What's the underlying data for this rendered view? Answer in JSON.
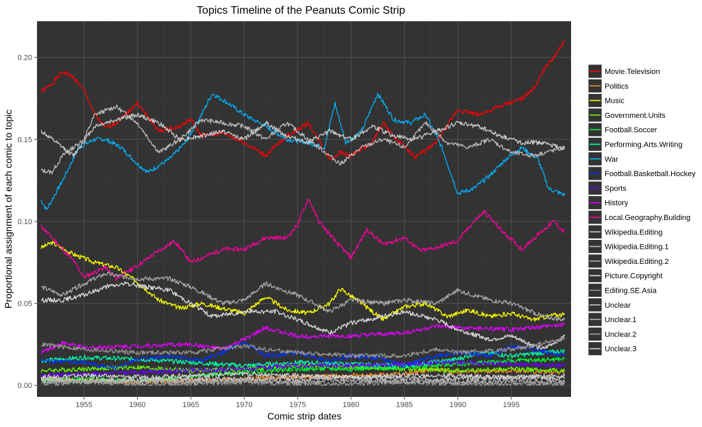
{
  "chart_data": {
    "type": "line",
    "title": "Topics Timeline of the Peanuts Comic Strip",
    "xlabel": "Comic strip dates",
    "ylabel": "Proportional assignment of each comic to topic",
    "xlim": [
      1950.6,
      2000.6
    ],
    "ylim": [
      -0.007,
      0.222
    ],
    "x_ticks": [
      1955,
      1960,
      1965,
      1970,
      1975,
      1980,
      1985,
      1990,
      1995
    ],
    "x_tick_labels": [
      "1955",
      "1960",
      "1965",
      "1970",
      "1975",
      "1980",
      "1985",
      "1990",
      "1995"
    ],
    "y_ticks": [
      0.0,
      0.05,
      0.1,
      0.15,
      0.2
    ],
    "y_tick_labels": [
      "0.00",
      "0.05",
      "0.10",
      "0.15",
      "0.20"
    ],
    "grid": true,
    "legend_position": "right",
    "series": [
      {
        "name": "Movie.Television",
        "color": "#ff0000",
        "x": [
          1951,
          1952,
          1953,
          1954,
          1955,
          1956,
          1957,
          1958,
          1960,
          1962,
          1964,
          1965,
          1966,
          1968,
          1970,
          1972,
          1974,
          1976,
          1978,
          1979,
          1980,
          1982,
          1983,
          1984,
          1986,
          1988,
          1990,
          1992,
          1994,
          1996,
          1997,
          1998,
          1999,
          2000
        ],
        "y": [
          0.179,
          0.184,
          0.191,
          0.188,
          0.18,
          0.165,
          0.157,
          0.16,
          0.172,
          0.155,
          0.158,
          0.162,
          0.152,
          0.154,
          0.148,
          0.14,
          0.152,
          0.16,
          0.138,
          0.142,
          0.14,
          0.148,
          0.16,
          0.152,
          0.139,
          0.148,
          0.168,
          0.165,
          0.17,
          0.175,
          0.18,
          0.192,
          0.2,
          0.21
        ]
      },
      {
        "name": "Politics",
        "color": "#ff8c1a",
        "x": [
          1951,
          1955,
          1960,
          1965,
          1970,
          1975,
          1980,
          1985,
          1988,
          1990,
          1995,
          2000
        ],
        "y": [
          0.004,
          0.003,
          0.002,
          0.003,
          0.004,
          0.005,
          0.006,
          0.007,
          0.01,
          0.008,
          0.009,
          0.008
        ]
      },
      {
        "name": "Music",
        "color": "#ffff00",
        "x": [
          1951,
          1952,
          1954,
          1956,
          1958,
          1960,
          1962,
          1964,
          1966,
          1968,
          1970,
          1972,
          1974,
          1976,
          1978,
          1979,
          1981,
          1983,
          1985,
          1987,
          1989,
          1991,
          1993,
          1995,
          1997,
          1999,
          2000
        ],
        "y": [
          0.084,
          0.087,
          0.08,
          0.075,
          0.072,
          0.063,
          0.052,
          0.047,
          0.05,
          0.047,
          0.044,
          0.054,
          0.046,
          0.044,
          0.05,
          0.059,
          0.05,
          0.04,
          0.048,
          0.05,
          0.042,
          0.046,
          0.042,
          0.044,
          0.04,
          0.043,
          0.043
        ]
      },
      {
        "name": "Government.Units",
        "color": "#66ff00",
        "x": [
          1951,
          1955,
          1960,
          1965,
          1970,
          1975,
          1980,
          1985,
          1990,
          1995,
          2000
        ],
        "y": [
          0.009,
          0.01,
          0.011,
          0.009,
          0.01,
          0.012,
          0.011,
          0.01,
          0.009,
          0.01,
          0.009
        ]
      },
      {
        "name": "Football.Soccer",
        "color": "#00ff33",
        "x": [
          1951,
          1955,
          1960,
          1963,
          1966,
          1970,
          1975,
          1980,
          1985,
          1990,
          1995,
          2000
        ],
        "y": [
          0.003,
          0.004,
          0.003,
          0.004,
          0.006,
          0.008,
          0.01,
          0.01,
          0.011,
          0.013,
          0.015,
          0.016
        ]
      },
      {
        "name": "Performing.Arts.Writing",
        "color": "#00ffb3",
        "x": [
          1951,
          1955,
          1960,
          1965,
          1970,
          1975,
          1980,
          1985,
          1990,
          1992,
          1995,
          2000
        ],
        "y": [
          0.015,
          0.017,
          0.016,
          0.014,
          0.012,
          0.014,
          0.013,
          0.012,
          0.016,
          0.02,
          0.018,
          0.021
        ]
      },
      {
        "name": "War",
        "color": "#00b3ff",
        "x": [
          1951,
          1951.5,
          1953,
          1954.5,
          1956,
          1957,
          1958.5,
          1960,
          1961,
          1963,
          1964.5,
          1966,
          1967,
          1968.5,
          1970,
          1972,
          1974,
          1976,
          1977.5,
          1978.5,
          1979.5,
          1981,
          1982.5,
          1984,
          1985.5,
          1987,
          1988.5,
          1990,
          1991.5,
          1993,
          1994.5,
          1996,
          1997.5,
          1998.5,
          2000
        ],
        "y": [
          0.113,
          0.107,
          0.125,
          0.145,
          0.15,
          0.15,
          0.145,
          0.135,
          0.13,
          0.138,
          0.148,
          0.165,
          0.178,
          0.172,
          0.165,
          0.158,
          0.15,
          0.148,
          0.145,
          0.172,
          0.148,
          0.155,
          0.178,
          0.162,
          0.16,
          0.165,
          0.145,
          0.117,
          0.12,
          0.128,
          0.138,
          0.145,
          0.138,
          0.12,
          0.116
        ]
      },
      {
        "name": "Football.Basketball.Hockey",
        "color": "#0033ff",
        "x": [
          1951,
          1955,
          1958,
          1960,
          1963,
          1966,
          1968,
          1970,
          1972,
          1975,
          1978,
          1980,
          1983,
          1985,
          1988,
          1990,
          1993,
          1995,
          1997,
          2000
        ],
        "y": [
          0.015,
          0.014,
          0.01,
          0.016,
          0.018,
          0.015,
          0.02,
          0.026,
          0.018,
          0.02,
          0.015,
          0.018,
          0.016,
          0.012,
          0.018,
          0.02,
          0.018,
          0.024,
          0.022,
          0.018
        ]
      },
      {
        "name": "Sports",
        "color": "#6600ff",
        "x": [
          1951,
          1955,
          1960,
          1965,
          1970,
          1975,
          1980,
          1985,
          1990,
          1995,
          2000
        ],
        "y": [
          0.006,
          0.007,
          0.008,
          0.009,
          0.01,
          0.012,
          0.012,
          0.013,
          0.014,
          0.013,
          0.012
        ]
      },
      {
        "name": "History",
        "color": "#e600ff",
        "x": [
          1951,
          1953,
          1955,
          1960,
          1965,
          1968,
          1970,
          1972,
          1975,
          1980,
          1985,
          1988,
          1990,
          1995,
          2000
        ],
        "y": [
          0.02,
          0.026,
          0.023,
          0.024,
          0.025,
          0.022,
          0.028,
          0.035,
          0.03,
          0.03,
          0.032,
          0.036,
          0.035,
          0.034,
          0.037
        ]
      },
      {
        "name": "Local.Geography.Building",
        "color": "#ff00a0",
        "x": [
          1951,
          1952,
          1954,
          1955,
          1957,
          1958,
          1960,
          1962,
          1963.5,
          1965,
          1966.5,
          1968,
          1970,
          1972,
          1974,
          1975,
          1976,
          1977,
          1978.5,
          1980,
          1981.5,
          1983,
          1985,
          1986.5,
          1988,
          1990,
          1991.5,
          1992.5,
          1994,
          1996,
          1997.5,
          1999,
          2000
        ],
        "y": [
          0.097,
          0.09,
          0.076,
          0.066,
          0.072,
          0.065,
          0.073,
          0.082,
          0.088,
          0.075,
          0.079,
          0.083,
          0.083,
          0.09,
          0.09,
          0.098,
          0.114,
          0.1,
          0.088,
          0.078,
          0.095,
          0.086,
          0.09,
          0.082,
          0.084,
          0.088,
          0.1,
          0.106,
          0.095,
          0.083,
          0.092,
          0.1,
          0.093
        ]
      },
      {
        "name": "Wikipedia.Editing",
        "color": "#cccccc",
        "x": [
          1951,
          1952,
          1954,
          1956,
          1958,
          1960,
          1962,
          1964,
          1966,
          1968,
          1970,
          1972,
          1974,
          1976,
          1978,
          1980,
          1982,
          1984,
          1986,
          1988,
          1990,
          1992,
          1994,
          1996,
          1998,
          2000
        ],
        "y": [
          0.155,
          0.15,
          0.14,
          0.158,
          0.162,
          0.165,
          0.16,
          0.15,
          0.152,
          0.155,
          0.15,
          0.16,
          0.152,
          0.148,
          0.155,
          0.15,
          0.158,
          0.152,
          0.15,
          0.155,
          0.16,
          0.158,
          0.152,
          0.148,
          0.148,
          0.144
        ]
      },
      {
        "name": "Wikipedia.Editing.1",
        "color": "#bbbbbb",
        "x": [
          1951,
          1952,
          1953,
          1955,
          1956,
          1958,
          1960,
          1962,
          1964,
          1966,
          1968,
          1970,
          1972,
          1974,
          1976,
          1978,
          1979,
          1981,
          1983,
          1985,
          1987,
          1989,
          1991,
          1993,
          1995,
          1997,
          2000
        ],
        "y": [
          0.131,
          0.13,
          0.14,
          0.15,
          0.165,
          0.17,
          0.16,
          0.142,
          0.15,
          0.162,
          0.16,
          0.158,
          0.15,
          0.16,
          0.15,
          0.14,
          0.135,
          0.145,
          0.15,
          0.145,
          0.16,
          0.148,
          0.145,
          0.15,
          0.142,
          0.14,
          0.145
        ]
      },
      {
        "name": "Wikipedia.Editing.2",
        "color": "#aaaaaa",
        "x": [
          1951,
          1953,
          1955,
          1957,
          1960,
          1963,
          1965,
          1968,
          1970,
          1972,
          1975,
          1978,
          1980,
          1983,
          1985,
          1988,
          1990,
          1993,
          1995,
          1998,
          2000
        ],
        "y": [
          0.06,
          0.055,
          0.062,
          0.068,
          0.065,
          0.065,
          0.06,
          0.05,
          0.052,
          0.062,
          0.055,
          0.045,
          0.052,
          0.05,
          0.052,
          0.05,
          0.058,
          0.052,
          0.05,
          0.042,
          0.04
        ]
      },
      {
        "name": "Picture.Copyright",
        "color": "#dddddd",
        "x": [
          1951,
          1953,
          1955,
          1957,
          1959,
          1961,
          1963,
          1965,
          1967,
          1970,
          1973,
          1975,
          1978,
          1980,
          1983,
          1985,
          1988,
          1990,
          1993,
          1995,
          1998,
          2000
        ],
        "y": [
          0.052,
          0.052,
          0.055,
          0.06,
          0.062,
          0.06,
          0.058,
          0.05,
          0.042,
          0.045,
          0.045,
          0.04,
          0.032,
          0.038,
          0.042,
          0.045,
          0.04,
          0.034,
          0.028,
          0.03,
          0.022,
          0.03
        ]
      },
      {
        "name": "Editing.SE.Asia",
        "color": "#999999",
        "x": [
          1951,
          1955,
          1960,
          1965,
          1970,
          1972,
          1975,
          1980,
          1985,
          1988,
          1990,
          1995,
          2000
        ],
        "y": [
          0.025,
          0.022,
          0.02,
          0.02,
          0.024,
          0.022,
          0.02,
          0.018,
          0.018,
          0.022,
          0.02,
          0.022,
          0.028
        ]
      },
      {
        "name": "Unclear",
        "color": "#c8c8c8",
        "x": [
          1951,
          1955,
          1960,
          1965,
          1970,
          1975,
          1980,
          1985,
          1990,
          1995,
          2000
        ],
        "y": [
          0.004,
          0.003,
          0.003,
          0.004,
          0.004,
          0.004,
          0.005,
          0.004,
          0.004,
          0.005,
          0.004
        ]
      },
      {
        "name": "Unclear.1",
        "color": "#b4b4b4",
        "x": [
          1951,
          1955,
          1960,
          1965,
          1970,
          1975,
          1980,
          1985,
          1990,
          1995,
          2000
        ],
        "y": [
          0.002,
          0.002,
          0.003,
          0.002,
          0.003,
          0.002,
          0.003,
          0.002,
          0.002,
          0.003,
          0.002
        ]
      },
      {
        "name": "Unclear.2",
        "color": "#a0a0a0",
        "x": [
          1951,
          1955,
          1960,
          1965,
          1970,
          1975,
          1980,
          1985,
          1990,
          1995,
          2000
        ],
        "y": [
          0.001,
          0.002,
          0.001,
          0.001,
          0.002,
          0.001,
          0.001,
          0.002,
          0.001,
          0.001,
          0.001
        ]
      },
      {
        "name": "Unclear.3",
        "color": "#d2d2d2",
        "x": [
          1951,
          1955,
          1960,
          1965,
          1970,
          1975,
          1980,
          1985,
          1990,
          1995,
          2000
        ],
        "y": [
          0.005,
          0.006,
          0.005,
          0.006,
          0.007,
          0.006,
          0.005,
          0.006,
          0.006,
          0.005,
          0.006
        ]
      }
    ]
  },
  "colors": {
    "panel_background": "#333333",
    "grid_major": "#4d4d4d",
    "grid_minor": "#3f3f3f",
    "legend_key_background": "#333333"
  }
}
